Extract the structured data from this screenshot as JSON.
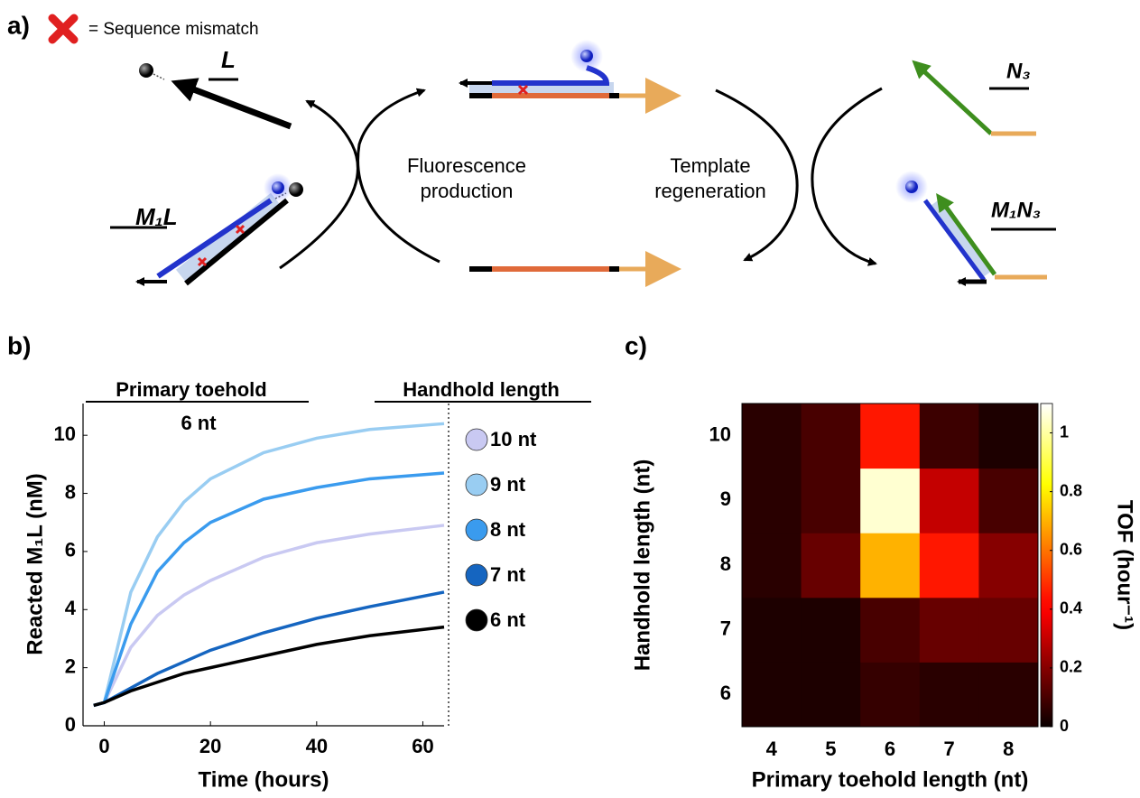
{
  "diagram": {
    "panel_label": "a)",
    "legend_text": "= Sequence mismatch",
    "labels": [
      "L",
      "N₃",
      "M₁L",
      "M₁N₃"
    ],
    "process_left": [
      "Fluorescence",
      "production"
    ],
    "process_right": [
      "Template",
      "regeneration"
    ]
  },
  "chart_data": [
    {
      "type": "line",
      "panel_label": "b)",
      "x_label": "Time (hours)",
      "y_label": "Reacted M₁L (nM)",
      "annotations": [
        "Primary toehold",
        "6 nt",
        "Handhold length"
      ],
      "x": [
        -2,
        0,
        5,
        10,
        15,
        20,
        30,
        40,
        50,
        64
      ],
      "series": [
        {
          "name": "10 nt",
          "color": "#c9c9f2",
          "values": [
            0.7,
            0.8,
            2.7,
            3.8,
            4.5,
            5.0,
            5.8,
            6.3,
            6.6,
            6.9
          ]
        },
        {
          "name": "9 nt",
          "color": "#99cdf2",
          "values": [
            0.7,
            0.8,
            4.6,
            6.5,
            7.7,
            8.5,
            9.4,
            9.9,
            10.2,
            10.4
          ]
        },
        {
          "name": "8 nt",
          "color": "#3a9bee",
          "values": [
            0.7,
            0.8,
            3.5,
            5.3,
            6.3,
            7.0,
            7.8,
            8.2,
            8.5,
            8.7
          ]
        },
        {
          "name": "7 nt",
          "color": "#1565c0",
          "values": [
            0.7,
            0.8,
            1.3,
            1.8,
            2.2,
            2.6,
            3.2,
            3.7,
            4.1,
            4.6
          ]
        },
        {
          "name": "6 nt",
          "color": "#000000",
          "values": [
            0.7,
            0.8,
            1.2,
            1.5,
            1.8,
            2.0,
            2.4,
            2.8,
            3.1,
            3.4
          ]
        }
      ],
      "xlim": [
        -4,
        64
      ],
      "ylim": [
        0,
        11
      ],
      "xticks": [
        0,
        20,
        40,
        60
      ],
      "yticks": [
        0,
        2,
        4,
        6,
        8,
        10
      ]
    },
    {
      "type": "heatmap",
      "panel_label": "c)",
      "x_label": "Primary toehold length (nt)",
      "y_label": "Handhold length (nt)",
      "colorbar_label": "TOF (hour⁻¹)",
      "colormap": "hot",
      "x_categories": [
        "4",
        "5",
        "6",
        "7",
        "8"
      ],
      "y_categories": [
        "6",
        "7",
        "8",
        "9",
        "10"
      ],
      "values": [
        [
          0.03,
          0.03,
          0.07,
          0.05,
          0.05
        ],
        [
          0.03,
          0.03,
          0.1,
          0.15,
          0.15
        ],
        [
          0.05,
          0.15,
          0.7,
          0.45,
          0.2
        ],
        [
          0.05,
          0.1,
          1.05,
          0.3,
          0.1
        ],
        [
          0.05,
          0.1,
          0.45,
          0.08,
          0.03
        ]
      ],
      "clim": [
        0,
        1.1
      ],
      "cticks": [
        0,
        0.2,
        0.4,
        0.6,
        0.8,
        1
      ]
    }
  ]
}
